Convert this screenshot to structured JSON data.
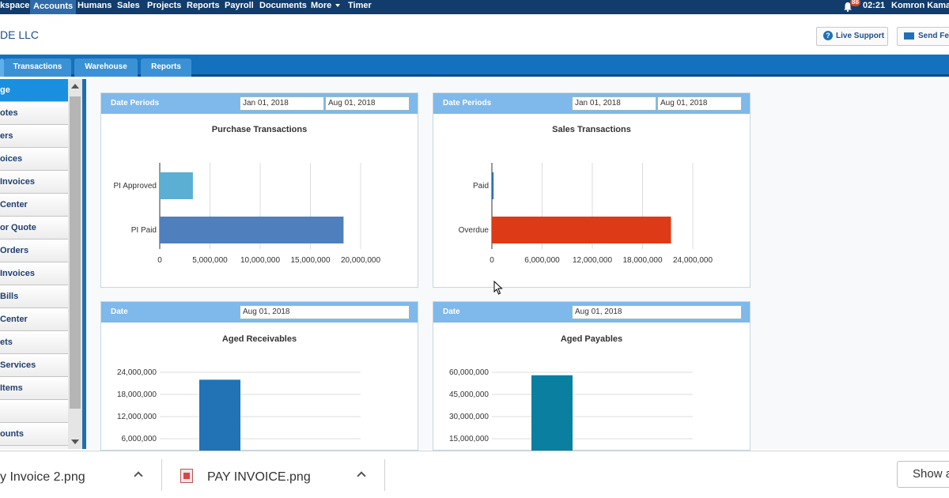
{
  "topnav": {
    "items": [
      "kspace",
      "Accounts",
      "Humans",
      "Sales",
      "Projects",
      "Reports",
      "Payroll",
      "Documents",
      "More",
      "Timer"
    ],
    "notification_count": "88",
    "time": "02:21",
    "user": "Komron Kama"
  },
  "header": {
    "company": "DE LLC",
    "live_support": "Live Support",
    "send_feedback": "Send Fe"
  },
  "tabs": [
    "Transactions",
    "Warehouse",
    "Reports"
  ],
  "sidebar": {
    "items": [
      "ge",
      "otes",
      "ers",
      "oices",
      "Invoices",
      "Center",
      "or Quote",
      "Orders",
      "Invoices",
      "Bills",
      "Center",
      "ets",
      "Services",
      "Items",
      "",
      "ounts"
    ]
  },
  "purchase": {
    "period_label": "Date Periods",
    "from": "Jan 01, 2018",
    "to": "Aug 01, 2018",
    "title": "Purchase Transactions"
  },
  "sales": {
    "period_label": "Date Periods",
    "from": "Jan 01, 2018",
    "to": "Aug 01, 2018",
    "title": "Sales Transactions"
  },
  "receivables": {
    "date_label": "Date",
    "date": "Aug 01, 2018",
    "title": "Aged Receivables"
  },
  "payables": {
    "date_label": "Date",
    "date": "Aug 01, 2018",
    "title": "Aged Payables"
  },
  "downloads": {
    "file1": "y Invoice 2.png",
    "file2": "PAY INVOICE.png",
    "show_all": "Show a"
  },
  "colors": {
    "pi_approved": "#5aafd2",
    "pi_paid": "#4f7fbc",
    "paid": "#2f6fb0",
    "overdue": "#dd3a17",
    "receivables_bar": "#2173b6",
    "payables_bar": "#0a7fa0"
  },
  "chart_data": [
    {
      "type": "bar",
      "orientation": "horizontal",
      "title": "Purchase Transactions",
      "categories": [
        "PI Approved",
        "PI Paid"
      ],
      "values": [
        3300000,
        18300000
      ],
      "xlim": [
        0,
        20000000
      ],
      "xticks": [
        "0",
        "5,000,000",
        "10,000,000",
        "15,000,000",
        "20,000,000"
      ],
      "grid": true
    },
    {
      "type": "bar",
      "orientation": "horizontal",
      "title": "Sales Transactions",
      "categories": [
        "Paid",
        "Overdue"
      ],
      "values": [
        200000,
        21400000
      ],
      "xlim": [
        0,
        24000000
      ],
      "xticks": [
        "0",
        "6,000,000",
        "12,000,000",
        "18,000,000",
        "24,000,000"
      ],
      "grid": true
    },
    {
      "type": "bar",
      "title": "Aged Receivables",
      "values": [
        22000000
      ],
      "yticks": [
        "6,000,000",
        "12,000,000",
        "18,000,000",
        "24,000,000"
      ],
      "grid": true
    },
    {
      "type": "bar",
      "title": "Aged Payables",
      "values": [
        58000000
      ],
      "yticks": [
        "15,000,000",
        "30,000,000",
        "45,000,000",
        "60,000,000"
      ],
      "grid": true
    }
  ]
}
